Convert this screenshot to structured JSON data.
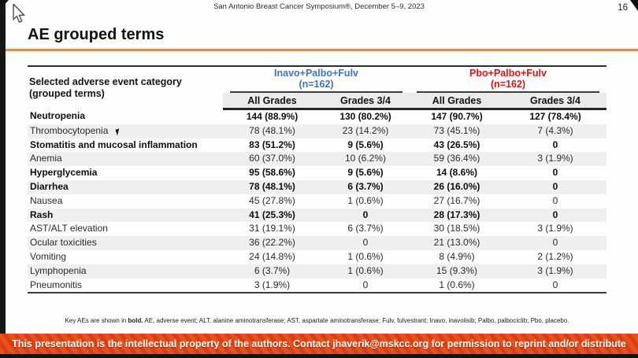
{
  "page": {
    "conference_header": "San Antonio Breast Cancer Symposium®, December 5–9, 2023",
    "slide_number": "16",
    "title": "AE grouped terms"
  },
  "table": {
    "row_header": {
      "line1": "Selected adverse event category",
      "line2": "(grouped terms)"
    },
    "groups": [
      {
        "name": "Inavo+Palbo+Fulv",
        "n": "(n=162)",
        "color": "#4472B8"
      },
      {
        "name": "Pbo+Palbo+Fulv",
        "n": "(n=162)",
        "color": "#E01212"
      }
    ],
    "sub_headers": [
      "All Grades",
      "Grades 3/4",
      "All Grades",
      "Grades 3/4"
    ],
    "rows": [
      {
        "label": "Neutropenia",
        "bold": true,
        "values": [
          "144 (88.9%)",
          "130 (80.2%)",
          "147 (90.7%)",
          "127 (78.4%)"
        ]
      },
      {
        "label": "Thrombocytopenia",
        "bold": false,
        "cursor_artifact": true,
        "values": [
          "78 (48.1%)",
          "23 (14.2%)",
          "73 (45.1%)",
          "7 (4.3%)"
        ]
      },
      {
        "label": "Stomatitis and mucosal inflammation",
        "bold": true,
        "values": [
          "83 (51.2%)",
          "9 (5.6%)",
          "43 (26.5%)",
          "0"
        ]
      },
      {
        "label": "Anemia",
        "bold": false,
        "values": [
          "60 (37.0%)",
          "10 (6.2%)",
          "59 (36.4%)",
          "3 (1.9%)"
        ]
      },
      {
        "label": "Hyperglycemia",
        "bold": true,
        "values": [
          "95 (58.6%)",
          "9 (5.6%)",
          "14 (8.6%)",
          "0"
        ]
      },
      {
        "label": "Diarrhea",
        "bold": true,
        "values": [
          "78 (48.1%)",
          "6 (3.7%)",
          "26 (16.0%)",
          "0"
        ]
      },
      {
        "label": "Nausea",
        "bold": false,
        "values": [
          "45 (27.8%)",
          "1 (0.6%)",
          "27 (16.7%)",
          "0"
        ]
      },
      {
        "label": "Rash",
        "bold": true,
        "values": [
          "41 (25.3%)",
          "0",
          "28 (17.3%)",
          "0"
        ]
      },
      {
        "label": "AST/ALT elevation",
        "bold": false,
        "values": [
          "31 (19.1%)",
          "6 (3.7%)",
          "30 (18.5%)",
          "3 (1.9%)"
        ]
      },
      {
        "label": "Ocular toxicities",
        "bold": false,
        "values": [
          "36 (22.2%)",
          "0",
          "21 (13.0%)",
          "0"
        ]
      },
      {
        "label": "Vomiting",
        "bold": false,
        "values": [
          "24 (14.8%)",
          "1 (0.6%)",
          "8 (4.9%)",
          "2 (1.2%)"
        ]
      },
      {
        "label": "Lymphopenia",
        "bold": false,
        "values": [
          "6 (3.7%)",
          "1 (0.6%)",
          "15 (9.3%)",
          "3 (1.9%)"
        ]
      },
      {
        "label": "Pneumonitis",
        "bold": false,
        "values": [
          "3 (1.9%)",
          "0",
          "1 (0.6%)",
          "0"
        ]
      }
    ]
  },
  "footnote": {
    "prefix": "Key AEs are shown in ",
    "bold_word": "bold.",
    "rest": " AE, adverse event; ALT, alanine aminotransferase; AST, aspartate aminotransferase; Fulv, fulvestrant; Inavo, inavolisib; Palbo, palbociclib; Pbo, placebo."
  },
  "banner": {
    "text": "This presentation is the intellectual property of the authors. Contact jhaverik@mskcc.org for permission to reprint and/or distribute"
  },
  "colors": {
    "accent_orange": "#E5894A",
    "group1_blue": "#4472B8",
    "group2_red": "#E01212",
    "banner_orange": "#E8511E",
    "banner_stripe": "#D93F10"
  }
}
